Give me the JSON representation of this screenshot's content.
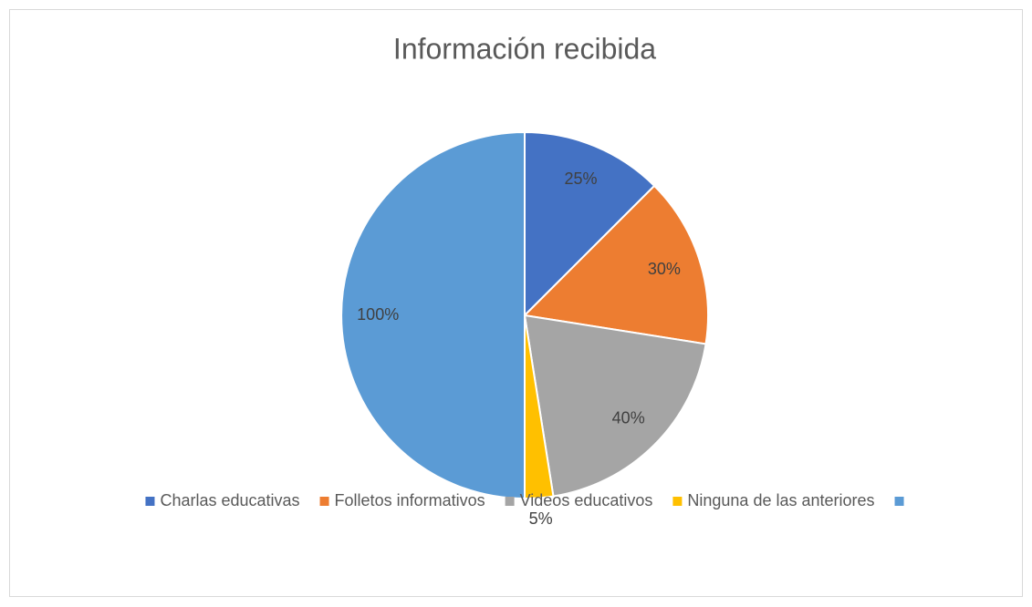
{
  "chart_data": {
    "type": "pie",
    "title": "Información recibida",
    "categories": [
      "Charlas educativas",
      "Folletos informativos",
      "Videos educativos",
      "Ninguna de las anteriores",
      null
    ],
    "values": [
      25,
      30,
      40,
      5,
      100
    ],
    "value_labels": [
      "25%",
      "30%",
      "40%",
      "5%",
      "100%"
    ],
    "colors": [
      "#4472c4",
      "#ed7d31",
      "#a5a5a5",
      "#ffc000",
      "#5b9bd5"
    ],
    "legend": "bottom"
  }
}
